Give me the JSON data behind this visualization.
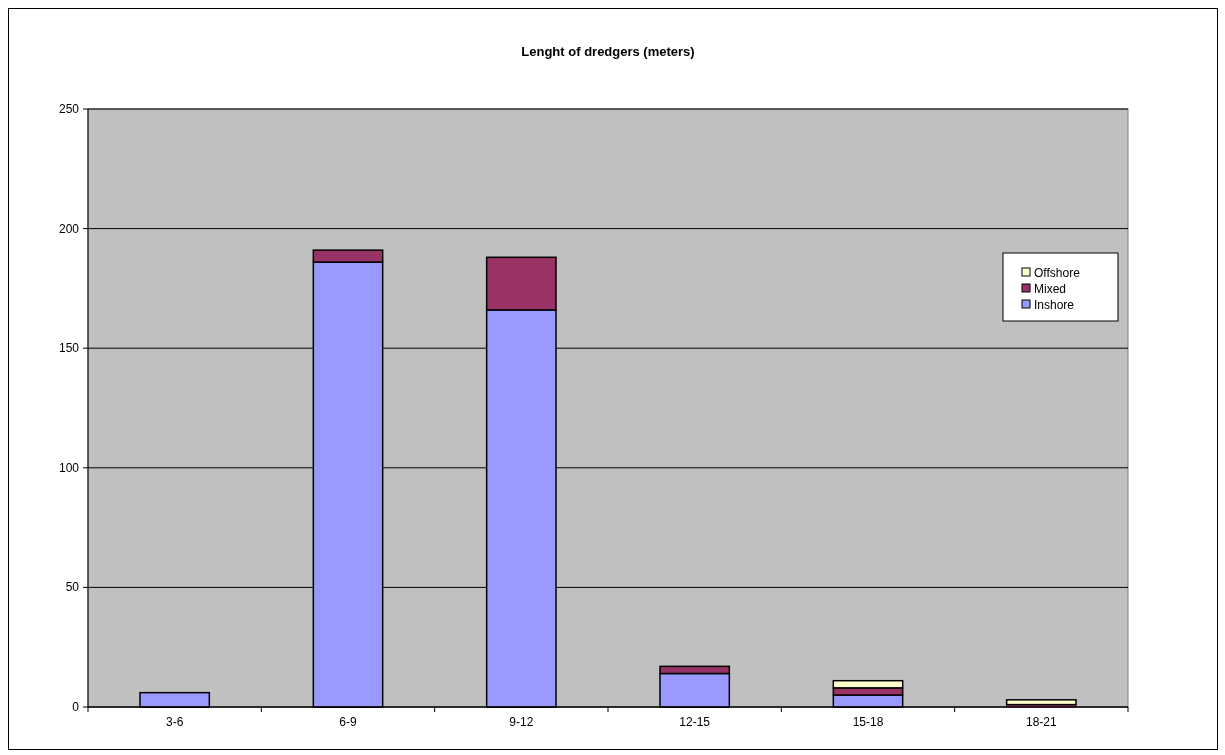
{
  "chart_data": {
    "type": "bar",
    "title": "Lenght of dredgers (meters)",
    "categories": [
      "3-6",
      "6-9",
      "9-12",
      "12-15",
      "15-18",
      "18-21"
    ],
    "stacked": true,
    "series": [
      {
        "name": "Inshore",
        "color": "#9999ff",
        "values": [
          6,
          186,
          166,
          14,
          5,
          0
        ]
      },
      {
        "name": "Mixed",
        "color": "#993366",
        "values": [
          0,
          5,
          22,
          3,
          3,
          1
        ]
      },
      {
        "name": "Offshore",
        "color": "#ffffcc",
        "values": [
          0,
          0,
          0,
          0,
          3,
          2
        ]
      }
    ],
    "ylim": [
      0,
      250
    ],
    "yticks": [
      0,
      50,
      100,
      150,
      200,
      250
    ],
    "grid": "y",
    "legend": "right"
  }
}
